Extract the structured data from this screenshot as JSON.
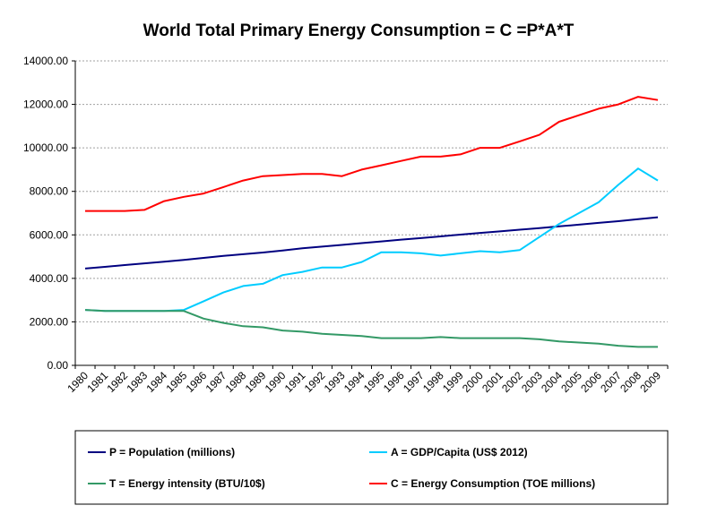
{
  "chart_data": {
    "type": "line",
    "title": "World Total Primary Energy Consumption  = C =P*A*T",
    "xlabel": "",
    "ylabel": "",
    "ylim": [
      0,
      14000
    ],
    "yticks": [
      "0.00",
      "2000.00",
      "4000.00",
      "6000.00",
      "8000.00",
      "10000.00",
      "12000.00",
      "14000.00"
    ],
    "grid": true,
    "legend_position": "bottom",
    "categories": [
      "1980",
      "1981",
      "1982",
      "1983",
      "1984",
      "1985",
      "1986",
      "1987",
      "1988",
      "1989",
      "1990",
      "1991",
      "1992",
      "1993",
      "1994",
      "1995",
      "1996",
      "1997",
      "1998",
      "1999",
      "2000",
      "2001",
      "2002",
      "2003",
      "2004",
      "2005",
      "2006",
      "2007",
      "2008",
      "2009"
    ],
    "series": [
      {
        "name": "P = Population (millions)",
        "color": "#000080",
        "values": [
          4450,
          4530,
          4610,
          4690,
          4770,
          4850,
          4940,
          5030,
          5110,
          5190,
          5280,
          5380,
          5460,
          5540,
          5620,
          5700,
          5780,
          5850,
          5930,
          6010,
          6090,
          6160,
          6240,
          6310,
          6390,
          6470,
          6550,
          6630,
          6720,
          6810
        ]
      },
      {
        "name": "A = GDP/Capita (US$ 2012)",
        "color": "#00ccff",
        "values": [
          2550,
          2500,
          2500,
          2500,
          2500,
          2550,
          2950,
          3350,
          3650,
          3750,
          4150,
          4300,
          4500,
          4500,
          4750,
          5200,
          5200,
          5150,
          5050,
          5150,
          5250,
          5200,
          5300,
          5900,
          6500,
          7000,
          7500,
          8300,
          9050,
          8500
        ]
      },
      {
        "name": "T = Energy intensity (BTU/10$)",
        "color": "#339966",
        "values": [
          2550,
          2500,
          2500,
          2500,
          2500,
          2500,
          2150,
          1950,
          1800,
          1750,
          1600,
          1550,
          1450,
          1400,
          1350,
          1250,
          1250,
          1250,
          1300,
          1250,
          1250,
          1250,
          1250,
          1200,
          1100,
          1050,
          1000,
          900,
          850,
          850
        ]
      },
      {
        "name": "C = Energy Consumption (TOE millions)",
        "color": "#ff0000",
        "values": [
          7100,
          7100,
          7100,
          7150,
          7550,
          7750,
          7900,
          8200,
          8500,
          8700,
          8750,
          8800,
          8800,
          8700,
          9000,
          9200,
          9400,
          9600,
          9600,
          9700,
          10000,
          10000,
          10300,
          10600,
          11200,
          11500,
          11800,
          12000,
          12350,
          12200
        ]
      }
    ]
  }
}
